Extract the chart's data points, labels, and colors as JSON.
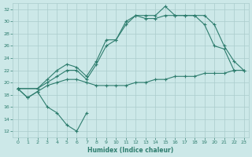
{
  "color": "#2e7d6e",
  "bg_color": "#cce8e8",
  "grid_color": "#aacccc",
  "xlabel": "Humidex (Indice chaleur)",
  "xlim": [
    -0.5,
    23.5
  ],
  "ylim": [
    11,
    33
  ],
  "yticks": [
    12,
    14,
    16,
    18,
    20,
    22,
    24,
    26,
    28,
    30,
    32
  ],
  "xticks": [
    0,
    1,
    2,
    3,
    4,
    5,
    6,
    7,
    8,
    9,
    10,
    11,
    12,
    13,
    14,
    15,
    16,
    17,
    18,
    19,
    20,
    21,
    22,
    23
  ],
  "line1_x": [
    0,
    1,
    2,
    3,
    4,
    5,
    6,
    7
  ],
  "line1_y": [
    19,
    17.5,
    18.5,
    16,
    15,
    13,
    12,
    15
  ],
  "line2_x": [
    0,
    1,
    2,
    3,
    4,
    5,
    6,
    7,
    8,
    9,
    10,
    11,
    12,
    13,
    14,
    15,
    16,
    17,
    18,
    19,
    20,
    21,
    22,
    23
  ],
  "line2_y": [
    19,
    17.5,
    18.5,
    19.5,
    20,
    20.5,
    20.5,
    20,
    19.5,
    19.5,
    19.5,
    19.5,
    20,
    20,
    20.5,
    20.5,
    21,
    21,
    21,
    21.5,
    21.5,
    21.5,
    22,
    22
  ],
  "line3_x": [
    0,
    2,
    3,
    4,
    5,
    6,
    7,
    8,
    9,
    10,
    11,
    12,
    13,
    14,
    15,
    16,
    17,
    18,
    19,
    20,
    21,
    22,
    23
  ],
  "line3_y": [
    19,
    19,
    20.5,
    22,
    23,
    22.5,
    21,
    23.5,
    27,
    27,
    30,
    31,
    31,
    31,
    32.5,
    31,
    31,
    31,
    31,
    29.5,
    26,
    23.5,
    22
  ],
  "line4_x": [
    0,
    2,
    3,
    4,
    5,
    6,
    7,
    8,
    9,
    10,
    11,
    12,
    13,
    14,
    15,
    16,
    17,
    18,
    19,
    20,
    21,
    22,
    23
  ],
  "line4_y": [
    19,
    19,
    20,
    21,
    22,
    22,
    20.5,
    23,
    26,
    27,
    29.5,
    31,
    30.5,
    30.5,
    31,
    31,
    31,
    31,
    29.5,
    26,
    25.5,
    22,
    null
  ]
}
